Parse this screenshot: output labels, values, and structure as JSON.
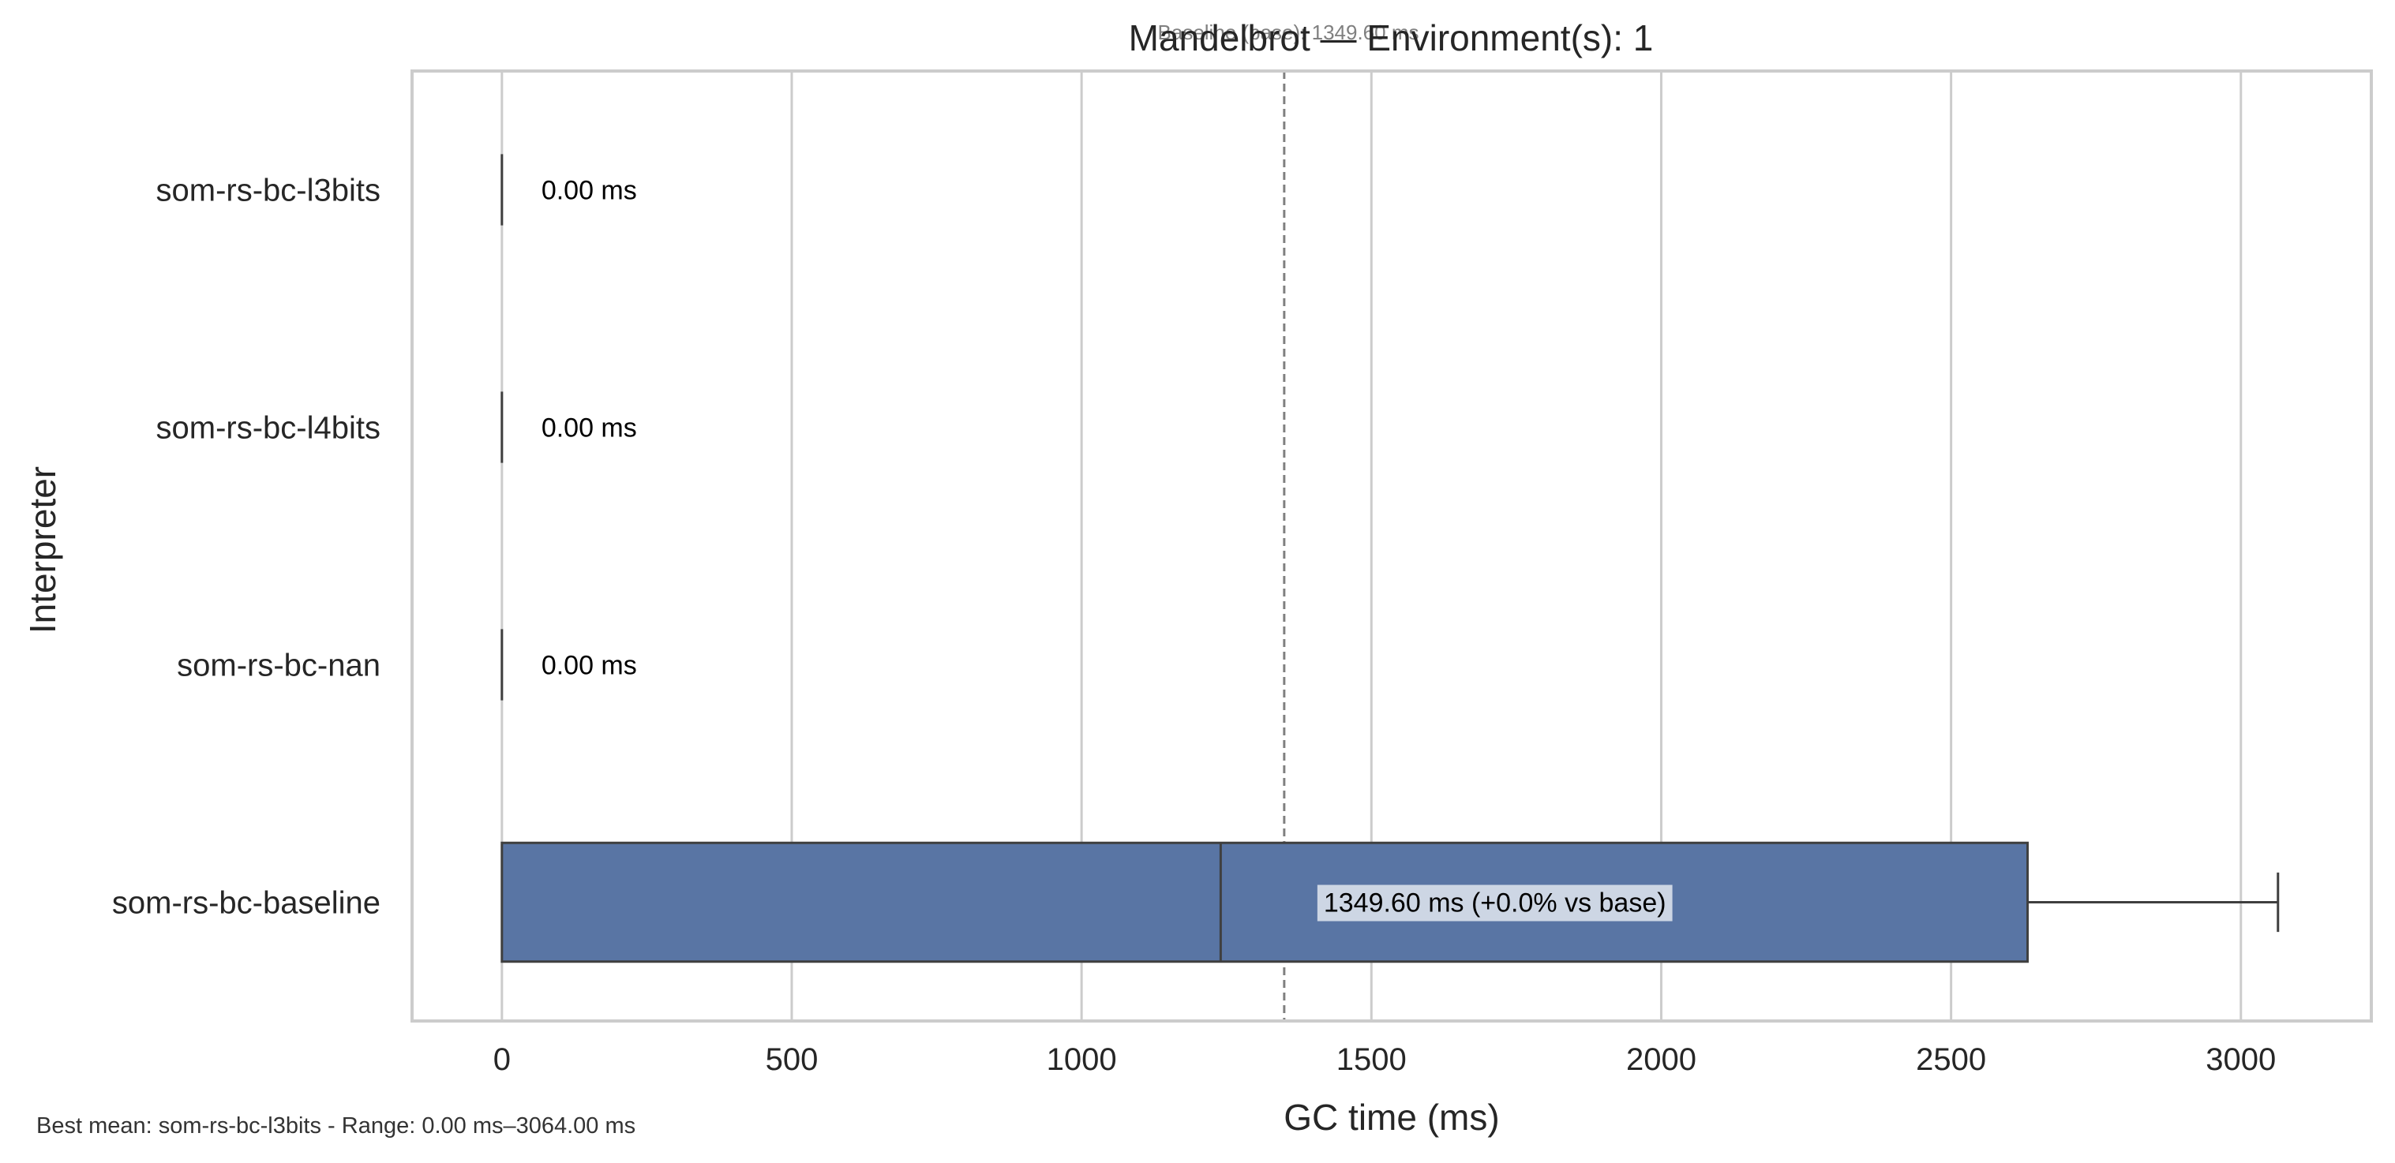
{
  "chart_data": {
    "type": "box",
    "orientation": "horizontal",
    "title": "Mandelbrot — Environment(s): 1",
    "baseline_annotation": "Baseline (base): 1349.60 ms",
    "xlabel": "GC time (ms)",
    "ylabel": "Interpreter",
    "xlim": [
      -155,
      3225
    ],
    "xticks": [
      0,
      500,
      1000,
      1500,
      2000,
      2500,
      3000
    ],
    "xtick_labels": [
      "0",
      "500",
      "1000",
      "1500",
      "2000",
      "2500",
      "3000"
    ],
    "grid": "vertical",
    "baseline_value": 1349.6,
    "categories": [
      "som-rs-bc-l3bits",
      "som-rs-bc-l4bits",
      "som-rs-bc-nan",
      "som-rs-bc-baseline"
    ],
    "boxes": [
      {
        "name": "som-rs-bc-l3bits",
        "min": 0,
        "q1": 0,
        "median": 0,
        "q3": 0,
        "max": 0,
        "mean": 0,
        "label": "0.00 ms"
      },
      {
        "name": "som-rs-bc-l4bits",
        "min": 0,
        "q1": 0,
        "median": 0,
        "q3": 0,
        "max": 0,
        "mean": 0,
        "label": "0.00 ms"
      },
      {
        "name": "som-rs-bc-nan",
        "min": 0,
        "q1": 0,
        "median": 0,
        "q3": 0,
        "max": 0,
        "mean": 0,
        "label": "0.00 ms"
      },
      {
        "name": "som-rs-bc-baseline",
        "min": 0,
        "q1": 0,
        "median": 1240,
        "q3": 2632,
        "max": 3064,
        "mean": 1349.6,
        "label": "1349.60 ms  (+0.0% vs base)"
      }
    ],
    "footnote": "Best mean: som-rs-bc-l3bits - Range: 0.00 ms–3064.00 ms"
  },
  "colors": {
    "box_fill": "#5975a4",
    "box_edge": "#3f3f3f",
    "grid": "#cccccc",
    "spine": "#cccccc",
    "text": "#262626",
    "baseline_line": "#808080",
    "label_bg": "#ffffff"
  }
}
